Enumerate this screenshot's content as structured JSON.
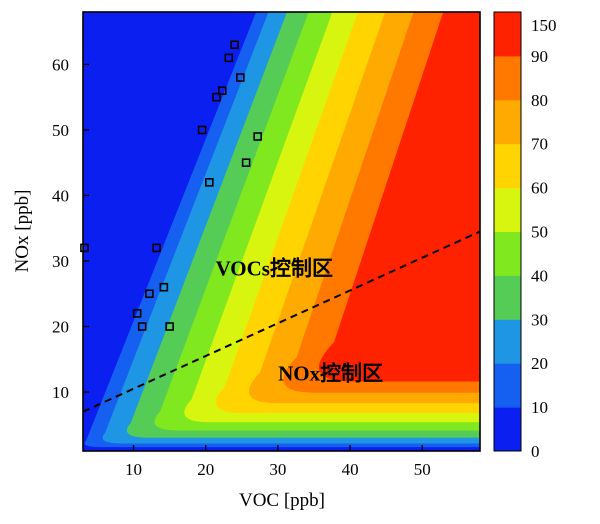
{
  "chart_data": {
    "type": "contour",
    "title": "",
    "xlabel": "VOC [ppb]",
    "ylabel": "NOx [ppb]",
    "xlim": [
      3,
      58
    ],
    "ylim": [
      1,
      68
    ],
    "xticks": [
      10,
      20,
      30,
      40,
      50
    ],
    "yticks": [
      10,
      20,
      30,
      40,
      50,
      60
    ],
    "colorbar": {
      "levels": [
        0,
        10,
        20,
        30,
        40,
        50,
        60,
        70,
        80,
        90,
        150
      ],
      "tick_labels": [
        "0",
        "10",
        "20",
        "30",
        "40",
        "50",
        "60",
        "70",
        "80",
        "90",
        "150"
      ],
      "colors": [
        "#0a1ff0",
        "#1560f0",
        "#1e96e4",
        "#55cc55",
        "#7fe81e",
        "#d8f510",
        "#ffd400",
        "#ffaa00",
        "#ff7800",
        "#ff2200"
      ]
    },
    "observations": {
      "x": [
        3.2,
        10.5,
        11.2,
        12.2,
        13.2,
        14.2,
        15.0,
        19.5,
        20.5,
        21.5,
        22.3,
        23.2,
        24.0,
        24.8,
        25.6,
        27.2
      ],
      "y": [
        32,
        22,
        20,
        25,
        32,
        26,
        20,
        50,
        42,
        55,
        56,
        61,
        63,
        58,
        45,
        49
      ]
    },
    "ridge_line": {
      "x": [
        3,
        58
      ],
      "y": [
        7,
        34.5
      ],
      "style": "dashed"
    },
    "annotations": [
      {
        "text": "VOCs控制区",
        "x": 29.5,
        "y": 28.5
      },
      {
        "text": "NOx控制区",
        "x": 37.3,
        "y": 12.5
      }
    ]
  }
}
